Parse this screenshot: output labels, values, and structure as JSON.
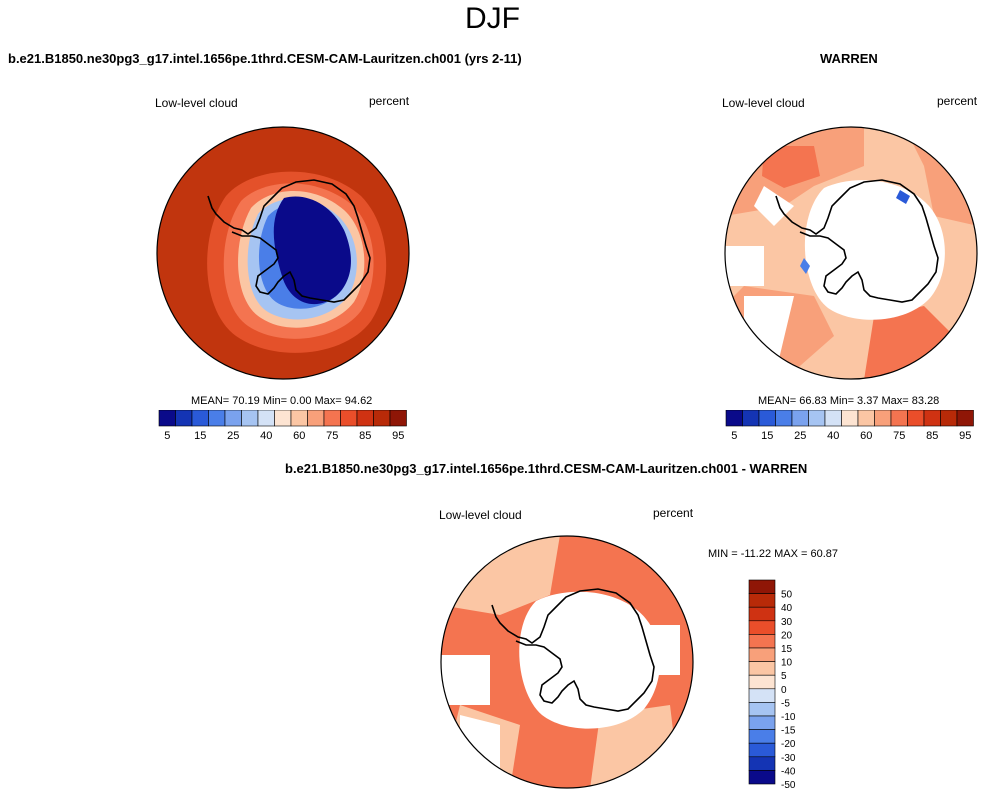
{
  "page": {
    "main_title": "DJF",
    "left_case_title": "b.e21.B1850.ne30pg3_g17.intel.1656pe.1thrd.CESM-CAM-Lauritzen.ch001 (yrs 2-11)",
    "right_case_title": "WARREN",
    "diff_case_title": "b.e21.B1850.ne30pg3_g17.intel.1656pe.1thrd.CESM-CAM-Lauritzen.ch001 - WARREN"
  },
  "panels": {
    "left": {
      "variable": "Low-level cloud",
      "units": "percent",
      "stats": "MEAN=  70.19  Min=   0.00  Max=  94.62"
    },
    "right": {
      "variable": "Low-level cloud",
      "units": "percent",
      "stats": "MEAN=  66.83  Min=   3.37  Max=  83.28"
    },
    "diff": {
      "variable": "Low-level cloud",
      "units": "percent",
      "stats": "MIN = -11.22 MAX =  60.87"
    }
  },
  "colors": {
    "abs_scale": [
      "#0a0a8a",
      "#1434b4",
      "#2a5ad8",
      "#4a7ee8",
      "#7aa2ee",
      "#a6c4f2",
      "#d4e2f6",
      "#fde4d2",
      "#fbc6a4",
      "#f8a07a",
      "#f47450",
      "#ea4e2a",
      "#cf3212",
      "#b82a08",
      "#8f1606"
    ],
    "diff_scale": [
      "#0a0a8a",
      "#1434b4",
      "#2a5ad8",
      "#4a7ee8",
      "#7aa2ee",
      "#a6c4f2",
      "#d4e2f6",
      "#fde4d2",
      "#fbc6a4",
      "#f8a07a",
      "#f47450",
      "#ea4e2a",
      "#cf3212",
      "#b82a08",
      "#8f1606"
    ],
    "left_ocean": "#c1350e",
    "left_ring": "#ea5a2c",
    "left_coast": "#f8a07a",
    "left_interior": "#0a0a8a",
    "left_shelf": "#4a7ee8",
    "obs_fill": "#f8a07a",
    "obs_dark": "#ea5a2c",
    "diff_fill": "#f47450",
    "diff_light": "#fbc6a4"
  },
  "chart_data": [
    {
      "type": "heatmap",
      "title": "b.e21.B1850.ne30pg3_g17.intel.1656pe.1thrd.CESM-CAM-Lauritzen.ch001 (yrs 2-11)",
      "subtitle": "Low-level cloud",
      "units": "percent",
      "projection": "south polar stereographic",
      "colorbar": {
        "orientation": "horizontal",
        "levels": [
          5,
          10,
          15,
          20,
          25,
          30,
          40,
          50,
          60,
          70,
          75,
          80,
          85,
          90,
          95
        ],
        "tick_labels": [
          "5",
          "15",
          "25",
          "40",
          "60",
          "75",
          "85",
          "95"
        ]
      },
      "mean": 70.19,
      "min": 0.0,
      "max": 94.62
    },
    {
      "type": "heatmap",
      "title": "WARREN",
      "subtitle": "Low-level cloud",
      "units": "percent",
      "projection": "south polar stereographic",
      "colorbar": {
        "orientation": "horizontal",
        "levels": [
          5,
          10,
          15,
          20,
          25,
          30,
          40,
          50,
          60,
          70,
          75,
          80,
          85,
          90,
          95
        ],
        "tick_labels": [
          "5",
          "15",
          "25",
          "40",
          "60",
          "75",
          "85",
          "95"
        ]
      },
      "mean": 66.83,
      "min": 3.37,
      "max": 83.28
    },
    {
      "type": "heatmap",
      "title": "b.e21.B1850.ne30pg3_g17.intel.1656pe.1thrd.CESM-CAM-Lauritzen.ch001 - WARREN",
      "subtitle": "Low-level cloud",
      "units": "percent",
      "projection": "south polar stereographic",
      "colorbar": {
        "orientation": "vertical",
        "levels": [
          -50,
          -40,
          -30,
          -20,
          -15,
          -10,
          -5,
          0,
          5,
          10,
          15,
          20,
          30,
          40,
          50
        ],
        "tick_labels": [
          "50",
          "40",
          "30",
          "20",
          "15",
          "10",
          "5",
          "0",
          "-5",
          "-10",
          "-15",
          "-20",
          "-30",
          "-40",
          "-50"
        ]
      },
      "min": -11.22,
      "max": 60.87
    }
  ]
}
